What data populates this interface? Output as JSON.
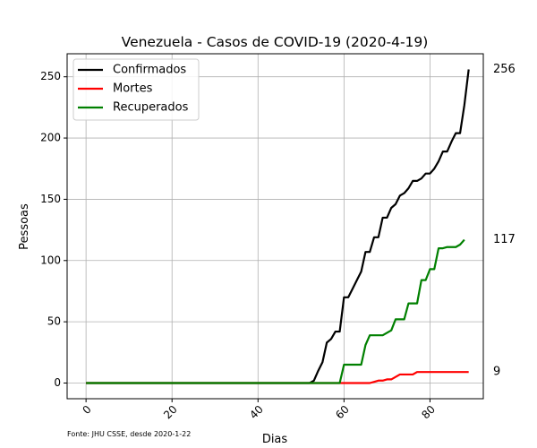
{
  "chart_data": {
    "type": "line",
    "title": "Venezuela - Casos de COVID-19 (2020-4-19)",
    "xlabel": "Dias",
    "ylabel": "Pessoas",
    "xlim": [
      -4.4,
      92.4
    ],
    "ylim": [
      -12.8,
      268.8
    ],
    "xticks": [
      0,
      20,
      40,
      60,
      80
    ],
    "yticks": [
      0,
      50,
      100,
      150,
      200,
      250
    ],
    "grid": true,
    "legend_position": "top-left",
    "source_note": "Fonte: JHU CSSE, desde 2020-1-22",
    "series": [
      {
        "name": "Confirmados",
        "color": "#000000",
        "end_label": "256",
        "points": [
          [
            0,
            0
          ],
          [
            52,
            0
          ],
          [
            53,
            2
          ],
          [
            54,
            10
          ],
          [
            55,
            17
          ],
          [
            56,
            33
          ],
          [
            57,
            36
          ],
          [
            58,
            42
          ],
          [
            59,
            42
          ],
          [
            60,
            70
          ],
          [
            61,
            70
          ],
          [
            62,
            77
          ],
          [
            63,
            84
          ],
          [
            64,
            91
          ],
          [
            65,
            107
          ],
          [
            66,
            107
          ],
          [
            67,
            119
          ],
          [
            68,
            119
          ],
          [
            69,
            135
          ],
          [
            70,
            135
          ],
          [
            71,
            143
          ],
          [
            72,
            146
          ],
          [
            73,
            153
          ],
          [
            74,
            155
          ],
          [
            75,
            159
          ],
          [
            76,
            165
          ],
          [
            77,
            165
          ],
          [
            78,
            167
          ],
          [
            79,
            171
          ],
          [
            80,
            171
          ],
          [
            81,
            175
          ],
          [
            82,
            181
          ],
          [
            83,
            189
          ],
          [
            84,
            189
          ],
          [
            85,
            197
          ],
          [
            86,
            204
          ],
          [
            87,
            204
          ],
          [
            88,
            227
          ],
          [
            89,
            256
          ]
        ]
      },
      {
        "name": "Mortes",
        "color": "#ff0000",
        "end_label": "9",
        "points": [
          [
            0,
            0
          ],
          [
            66,
            0
          ],
          [
            67,
            1
          ],
          [
            68,
            2
          ],
          [
            69,
            2
          ],
          [
            70,
            3
          ],
          [
            71,
            3
          ],
          [
            72,
            5
          ],
          [
            73,
            7
          ],
          [
            74,
            7
          ],
          [
            75,
            7
          ],
          [
            76,
            7
          ],
          [
            77,
            9
          ],
          [
            78,
            9
          ],
          [
            79,
            9
          ],
          [
            80,
            9
          ],
          [
            81,
            9
          ],
          [
            82,
            9
          ],
          [
            83,
            9
          ],
          [
            84,
            9
          ],
          [
            85,
            9
          ],
          [
            86,
            9
          ],
          [
            87,
            9
          ],
          [
            88,
            9
          ],
          [
            89,
            9
          ]
        ]
      },
      {
        "name": "Recuperados",
        "color": "#008000",
        "end_label": "117",
        "points": [
          [
            0,
            0
          ],
          [
            59,
            0
          ],
          [
            60,
            15
          ],
          [
            61,
            15
          ],
          [
            62,
            15
          ],
          [
            63,
            15
          ],
          [
            64,
            15
          ],
          [
            65,
            31
          ],
          [
            66,
            39
          ],
          [
            67,
            39
          ],
          [
            68,
            39
          ],
          [
            69,
            39
          ],
          [
            70,
            41
          ],
          [
            71,
            43
          ],
          [
            72,
            52
          ],
          [
            73,
            52
          ],
          [
            74,
            52
          ],
          [
            75,
            65
          ],
          [
            76,
            65
          ],
          [
            77,
            65
          ],
          [
            78,
            84
          ],
          [
            79,
            84
          ],
          [
            80,
            93
          ],
          [
            81,
            93
          ],
          [
            82,
            110
          ],
          [
            83,
            110
          ],
          [
            84,
            111
          ],
          [
            85,
            111
          ],
          [
            86,
            111
          ],
          [
            87,
            113
          ],
          [
            88,
            117
          ]
        ]
      }
    ]
  }
}
